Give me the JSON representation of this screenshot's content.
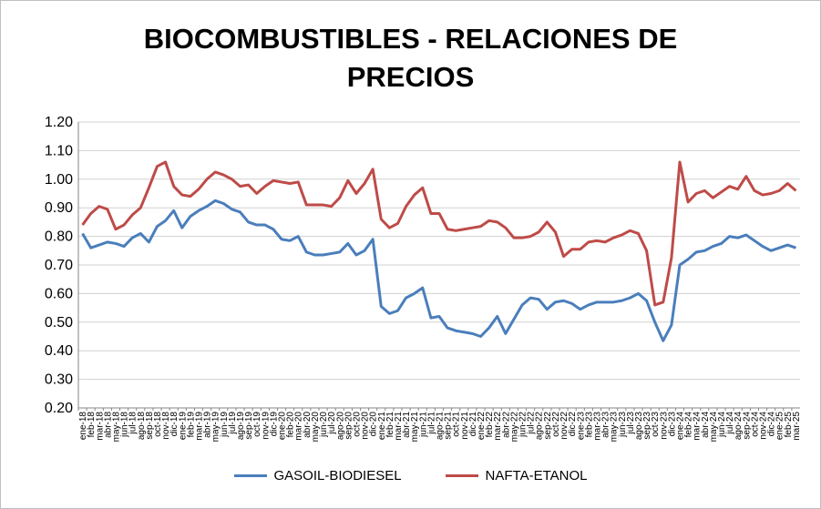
{
  "chart_data": {
    "type": "line",
    "title": "BIOCOMBUSTIBLES - RELACIONES DE PRECIOS",
    "xlabel": "",
    "ylabel": "",
    "ylim": [
      0.2,
      1.2
    ],
    "yticks": [
      "0.20",
      "0.30",
      "0.40",
      "0.50",
      "0.60",
      "0.70",
      "0.80",
      "0.90",
      "1.00",
      "1.10",
      "1.20"
    ],
    "grid": true,
    "legend": "bottom",
    "categories": [
      "ene-18",
      "feb-18",
      "mar-18",
      "abr-18",
      "may-18",
      "jun-18",
      "jul-18",
      "ago-18",
      "sep-18",
      "oct-18",
      "nov-18",
      "dic-18",
      "ene-19",
      "feb-19",
      "mar-19",
      "abr-19",
      "may-19",
      "jun-19",
      "jul-19",
      "ago-19",
      "sep-19",
      "oct-19",
      "nov-19",
      "dic-19",
      "ene-20",
      "feb-20",
      "mar-20",
      "abr-20",
      "may-20",
      "jun-20",
      "jul-20",
      "ago-20",
      "sep-20",
      "oct-20",
      "nov-20",
      "dic-20",
      "ene-21",
      "feb-21",
      "mar-21",
      "abr-21",
      "may-21",
      "jun-21",
      "jul-21",
      "ago-21",
      "sep-21",
      "oct-21",
      "nov-21",
      "dic-21",
      "ene-22",
      "feb-22",
      "mar-22",
      "abr-22",
      "may-22",
      "jun-22",
      "jul-22",
      "ago-22",
      "sep-22",
      "oct-22",
      "nov-22",
      "dic-22",
      "ene-23",
      "feb-23",
      "mar-23",
      "abr-23",
      "may-23",
      "jun-23",
      "jul-23",
      "ago-23",
      "sep-23",
      "oct-23",
      "nov-23",
      "dic-23",
      "ene-24",
      "feb-24",
      "mar-24",
      "abr-24",
      "may-24",
      "jun-24",
      "jul-24",
      "ago-24",
      "sep-24",
      "oct-24",
      "nov-24",
      "dic-24",
      "ene-25",
      "feb-25",
      "mar-25"
    ],
    "series": [
      {
        "name": "GASOIL-BIODIESEL",
        "color": "#4a7ebb",
        "values": [
          0.81,
          0.76,
          0.77,
          0.78,
          0.775,
          0.765,
          0.795,
          0.81,
          0.78,
          0.835,
          0.855,
          0.89,
          0.83,
          0.87,
          0.89,
          0.905,
          0.925,
          0.915,
          0.895,
          0.885,
          0.85,
          0.84,
          0.84,
          0.825,
          0.79,
          0.785,
          0.8,
          0.745,
          0.735,
          0.735,
          0.74,
          0.745,
          0.775,
          0.735,
          0.75,
          0.79,
          0.555,
          0.53,
          0.54,
          0.585,
          0.6,
          0.62,
          0.515,
          0.52,
          0.48,
          0.47,
          0.465,
          0.46,
          0.45,
          0.48,
          0.52,
          0.46,
          0.51,
          0.56,
          0.585,
          0.58,
          0.545,
          0.57,
          0.575,
          0.565,
          0.545,
          0.56,
          0.57,
          0.57,
          0.57,
          0.575,
          0.585,
          0.6,
          0.575,
          0.5,
          0.435,
          0.49,
          0.7,
          0.72,
          0.745,
          0.75,
          0.765,
          0.775,
          0.8,
          0.795,
          0.805,
          0.785,
          0.765,
          0.75,
          0.76,
          0.77,
          0.76
        ]
      },
      {
        "name": "NAFTA-ETANOL",
        "color": "#be4b48",
        "values": [
          0.84,
          0.88,
          0.905,
          0.895,
          0.825,
          0.84,
          0.875,
          0.9,
          0.97,
          1.045,
          1.06,
          0.975,
          0.945,
          0.94,
          0.965,
          1.0,
          1.025,
          1.015,
          1.0,
          0.975,
          0.98,
          0.95,
          0.975,
          0.995,
          0.99,
          0.985,
          0.99,
          0.91,
          0.91,
          0.91,
          0.905,
          0.935,
          0.995,
          0.95,
          0.985,
          1.035,
          0.86,
          0.83,
          0.845,
          0.905,
          0.945,
          0.97,
          0.88,
          0.88,
          0.825,
          0.82,
          0.825,
          0.83,
          0.835,
          0.855,
          0.85,
          0.83,
          0.795,
          0.795,
          0.8,
          0.815,
          0.85,
          0.815,
          0.73,
          0.755,
          0.755,
          0.78,
          0.785,
          0.78,
          0.795,
          0.805,
          0.82,
          0.81,
          0.75,
          0.56,
          0.57,
          0.725,
          1.06,
          0.92,
          0.95,
          0.96,
          0.935,
          0.955,
          0.975,
          0.965,
          1.01,
          0.96,
          0.945,
          0.95,
          0.96,
          0.985,
          0.96
        ]
      }
    ]
  }
}
